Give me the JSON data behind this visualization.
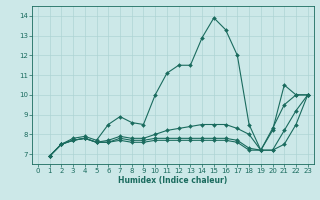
{
  "xlabel": "Humidex (Indice chaleur)",
  "bg_color": "#cce8e8",
  "line_color": "#1a6b5e",
  "grid_color": "#aed4d4",
  "xlim": [
    -0.5,
    23.5
  ],
  "ylim": [
    6.5,
    14.5
  ],
  "xticks": [
    0,
    1,
    2,
    3,
    4,
    5,
    6,
    7,
    8,
    9,
    10,
    11,
    12,
    13,
    14,
    15,
    16,
    17,
    18,
    19,
    20,
    21,
    22,
    23
  ],
  "yticks": [
    7,
    8,
    9,
    10,
    11,
    12,
    13,
    14
  ],
  "series": [
    {
      "x": [
        1,
        2,
        3,
        4,
        5,
        6,
        7,
        8,
        9,
        10,
        11,
        12,
        13,
        14,
        15,
        16,
        17,
        18,
        19,
        20,
        21,
        22,
        23
      ],
      "y": [
        6.9,
        7.5,
        7.8,
        7.9,
        7.7,
        8.5,
        8.9,
        8.6,
        8.5,
        10.0,
        11.1,
        11.5,
        11.5,
        12.9,
        13.9,
        13.3,
        12.0,
        8.5,
        7.2,
        8.2,
        10.5,
        10.0,
        10.0
      ]
    },
    {
      "x": [
        1,
        2,
        3,
        4,
        5,
        6,
        7,
        8,
        9,
        10,
        11,
        12,
        13,
        14,
        15,
        16,
        17,
        18,
        19,
        20,
        21,
        22,
        23
      ],
      "y": [
        6.9,
        7.5,
        7.7,
        7.8,
        7.6,
        7.7,
        7.9,
        7.8,
        7.8,
        8.0,
        8.2,
        8.3,
        8.4,
        8.5,
        8.5,
        8.5,
        8.3,
        8.0,
        7.2,
        8.3,
        9.5,
        10.0,
        10.0
      ]
    },
    {
      "x": [
        1,
        2,
        3,
        4,
        5,
        6,
        7,
        8,
        9,
        10,
        11,
        12,
        13,
        14,
        15,
        16,
        17,
        18,
        19,
        20,
        21,
        22,
        23
      ],
      "y": [
        6.9,
        7.5,
        7.7,
        7.8,
        7.6,
        7.6,
        7.8,
        7.7,
        7.7,
        7.8,
        7.8,
        7.8,
        7.8,
        7.8,
        7.8,
        7.8,
        7.7,
        7.3,
        7.2,
        7.2,
        8.2,
        9.2,
        10.0
      ]
    },
    {
      "x": [
        1,
        2,
        3,
        4,
        5,
        6,
        7,
        8,
        9,
        10,
        11,
        12,
        13,
        14,
        15,
        16,
        17,
        18,
        19,
        20,
        21,
        22,
        23
      ],
      "y": [
        6.9,
        7.5,
        7.7,
        7.8,
        7.6,
        7.6,
        7.7,
        7.6,
        7.6,
        7.7,
        7.7,
        7.7,
        7.7,
        7.7,
        7.7,
        7.7,
        7.6,
        7.2,
        7.2,
        7.2,
        7.5,
        8.5,
        10.0
      ]
    }
  ]
}
